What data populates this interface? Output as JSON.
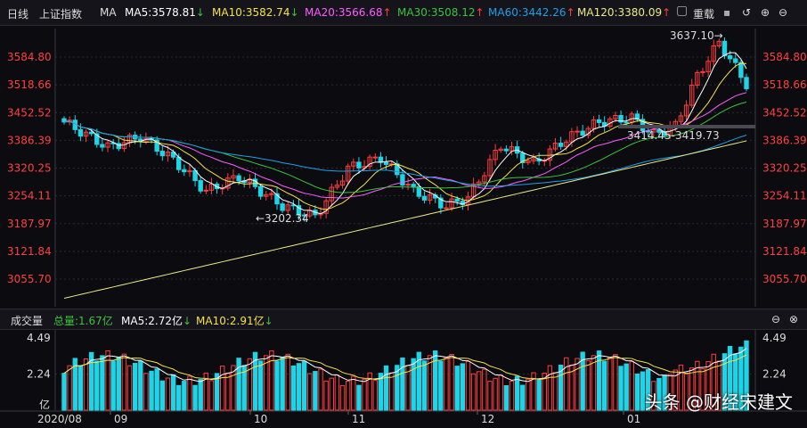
{
  "header": {
    "period_tab": "日线",
    "index_name": "上证指数",
    "indicator": "MA",
    "ma5": "MA5:3578.81",
    "ma10": "MA10:3582.74",
    "ma20": "MA20:3566.68",
    "ma30": "MA30:3508.12",
    "ma60": "MA60:3442.26",
    "ma120": "MA120:3380.09",
    "overlay_label": "重载",
    "arrow_down": "↓",
    "arrow_up": "↑"
  },
  "volume_header": {
    "title": "成交量",
    "total": "总量:1.67亿",
    "ma5": "MA5:2.72亿",
    "ma10": "MA10:2.91亿",
    "arrow_down": "↓"
  },
  "colors": {
    "up": "#ff3d3d",
    "down": "#1ed4e6",
    "ma5": "#ffffff",
    "ma10": "#f5e14d",
    "ma20": "#ff5cff",
    "ma30": "#3ec23e",
    "ma60": "#1ea0e6",
    "ma120": "#eaea8a",
    "axis_price": "#ff4040"
  },
  "watermark": "头条 @财经宋建文",
  "chart_data": {
    "type": "candlestick",
    "price_axis": {
      "ticks": [
        3584.8,
        3518.66,
        3452.52,
        3386.39,
        3320.25,
        3254.11,
        3187.97,
        3121.84,
        3055.7
      ],
      "labels": [
        "3584.80",
        "3518.66",
        "3452.52",
        "3386.39",
        "3320.25",
        "3254.11",
        "3187.97",
        "3121.84",
        "3055.70"
      ]
    },
    "volume_axis": {
      "labels": [
        "4.49",
        "2.24",
        "亿"
      ],
      "right_labels": [
        "4.49",
        "2.24"
      ],
      "ticks": [
        4.49,
        2.24,
        0
      ]
    },
    "x_labels": [
      "2020/08",
      "09",
      "10",
      "11",
      "12",
      "01"
    ],
    "annotations": {
      "high": "3637.10→",
      "low": "←3202.34",
      "range": "3414.45-3419.73"
    }
  }
}
